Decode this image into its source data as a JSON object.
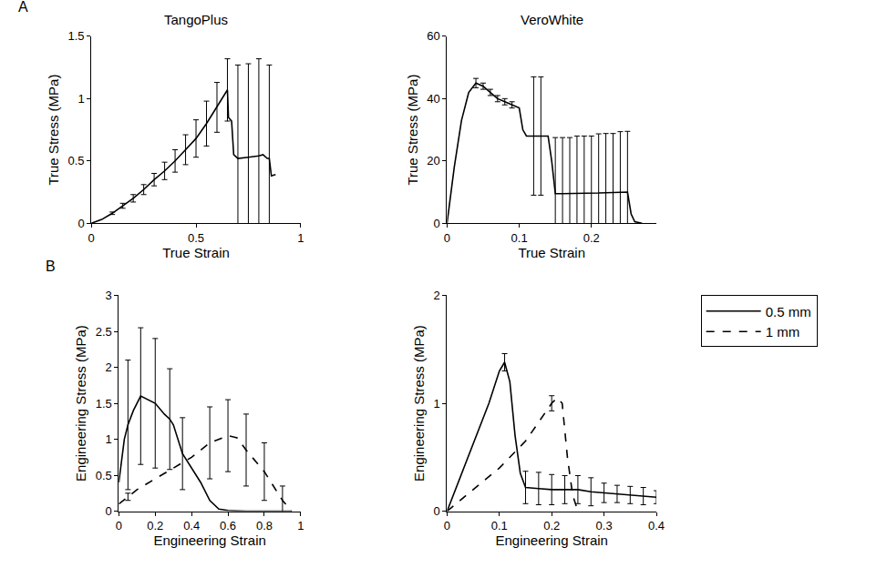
{
  "chart_data": [
    {
      "type": "line",
      "panel": "A",
      "title": "TangoPlus",
      "x_label": "True Strain",
      "y_label": "True Stress (MPa)",
      "xlim": [
        0,
        1
      ],
      "xticks": [
        0,
        0.5,
        1
      ],
      "ylim": [
        0,
        1.5
      ],
      "yticks": [
        0,
        0.5,
        1,
        1.5
      ],
      "series": [
        {
          "color": "#000000",
          "line_style": "solid",
          "x": [
            0,
            0.05,
            0.1,
            0.15,
            0.2,
            0.25,
            0.3,
            0.35,
            0.4,
            0.45,
            0.5,
            0.55,
            0.6,
            0.65,
            0.655,
            0.67,
            0.68,
            0.7,
            0.75,
            0.8,
            0.82,
            0.84,
            0.85,
            0.86,
            0.88
          ],
          "values": [
            0,
            0.03,
            0.08,
            0.14,
            0.2,
            0.27,
            0.35,
            0.42,
            0.5,
            0.59,
            0.68,
            0.8,
            0.93,
            1.07,
            0.85,
            0.82,
            0.55,
            0.52,
            0.53,
            0.54,
            0.55,
            0.52,
            0.52,
            0.38,
            0.39
          ],
          "error": [
            null,
            null,
            0.01,
            0.02,
            0.03,
            0.04,
            0.05,
            0.07,
            0.09,
            0.12,
            0.15,
            0.18,
            0.2,
            0.25,
            null,
            null,
            null,
            0.75,
            0.75,
            0.78,
            null,
            null,
            0.75,
            null,
            null
          ]
        }
      ]
    },
    {
      "type": "line",
      "title": "VeroWhite",
      "x_label": "True Strain",
      "y_label": "True Stress (MPa)",
      "xlim": [
        0,
        0.29
      ],
      "xticks": [
        0,
        0.1,
        0.2
      ],
      "ylim": [
        0,
        60
      ],
      "yticks": [
        0,
        20,
        40,
        60
      ],
      "series": [
        {
          "color": "#000000",
          "line_style": "solid",
          "x": [
            0,
            0.01,
            0.02,
            0.03,
            0.04,
            0.05,
            0.06,
            0.07,
            0.08,
            0.09,
            0.1,
            0.105,
            0.11,
            0.12,
            0.13,
            0.14,
            0.145,
            0.15,
            0.16,
            0.17,
            0.18,
            0.19,
            0.2,
            0.21,
            0.22,
            0.23,
            0.24,
            0.25,
            0.255,
            0.26,
            0.27
          ],
          "values": [
            0,
            18,
            33,
            42,
            45,
            44,
            42,
            40,
            39,
            38,
            37,
            30,
            28,
            28,
            28,
            28,
            20,
            9.5,
            9.5,
            9.5,
            9.5,
            9.5,
            9.5,
            9.7,
            9.8,
            9.8,
            9.9,
            10,
            3,
            0.5,
            0
          ],
          "error": [
            null,
            null,
            null,
            null,
            1.5,
            1,
            1,
            1,
            1,
            1,
            null,
            null,
            null,
            19,
            19,
            null,
            null,
            18,
            18,
            18,
            18.5,
            18.5,
            18.5,
            19,
            19,
            19,
            19.5,
            19.5,
            null,
            null,
            null
          ]
        }
      ]
    },
    {
      "type": "line",
      "panel": "B",
      "x_label": "Engineering Strain",
      "y_label": "Engineering Stress (MPa)",
      "xlim": [
        0,
        1
      ],
      "xticks": [
        0,
        0.2,
        0.4,
        0.6,
        0.8,
        1
      ],
      "ylim": [
        0,
        3
      ],
      "yticks": [
        0,
        0.5,
        1,
        1.5,
        2,
        2.5,
        3
      ],
      "series": [
        {
          "name": "0.5 mm",
          "color": "#000000",
          "line_style": "solid",
          "x": [
            0,
            0.03,
            0.05,
            0.08,
            0.12,
            0.2,
            0.25,
            0.28,
            0.3,
            0.35,
            0.45,
            0.5,
            0.55,
            0.6,
            0.7,
            0.8,
            0.95
          ],
          "values": [
            0.4,
            1.0,
            1.2,
            1.4,
            1.6,
            1.5,
            1.35,
            1.28,
            1.2,
            0.8,
            0.4,
            0.15,
            0.03,
            0.01,
            0,
            0,
            0
          ],
          "error": [
            null,
            null,
            0.9,
            null,
            0.95,
            0.9,
            null,
            0.7,
            null,
            0.5,
            null,
            null,
            null,
            null,
            null,
            null,
            null
          ]
        },
        {
          "name": "1 mm",
          "color": "#000000",
          "line_style": "dashed",
          "x": [
            0,
            0.05,
            0.1,
            0.2,
            0.3,
            0.4,
            0.5,
            0.6,
            0.65,
            0.7,
            0.8,
            0.9,
            0.95
          ],
          "values": [
            0.1,
            0.2,
            0.3,
            0.45,
            0.6,
            0.75,
            0.95,
            1.05,
            1.02,
            0.85,
            0.55,
            0.15,
            0
          ],
          "error": [
            null,
            0.05,
            null,
            null,
            null,
            null,
            0.5,
            0.5,
            null,
            0.5,
            0.4,
            0.2,
            null
          ]
        }
      ]
    },
    {
      "type": "line",
      "legend": "right",
      "x_label": "Engineering Strain",
      "y_label": "Engineering Stress (MPa)",
      "xlim": [
        0,
        0.4
      ],
      "xticks": [
        0,
        0.1,
        0.2,
        0.3,
        0.4
      ],
      "ylim": [
        0,
        2
      ],
      "yticks": [
        0,
        1,
        2
      ],
      "series": [
        {
          "name": "0.5 mm",
          "color": "#000000",
          "line_style": "solid",
          "x": [
            0,
            0.02,
            0.04,
            0.06,
            0.08,
            0.1,
            0.11,
            0.12,
            0.13,
            0.14,
            0.15,
            0.175,
            0.2,
            0.225,
            0.25,
            0.275,
            0.3,
            0.325,
            0.35,
            0.375,
            0.4
          ],
          "values": [
            0,
            0.25,
            0.5,
            0.75,
            1.0,
            1.3,
            1.38,
            1.2,
            0.7,
            0.35,
            0.22,
            0.21,
            0.2,
            0.2,
            0.2,
            0.18,
            0.17,
            0.16,
            0.15,
            0.14,
            0.13
          ],
          "error": [
            null,
            null,
            null,
            null,
            null,
            null,
            0.08,
            null,
            null,
            null,
            0.15,
            0.15,
            0.14,
            0.13,
            0.13,
            0.13,
            0.09,
            0.08,
            0.08,
            0.08,
            0.06
          ]
        },
        {
          "name": "1 mm",
          "color": "#000000",
          "line_style": "dashed",
          "x": [
            0,
            0.05,
            0.1,
            0.15,
            0.2,
            0.21,
            0.22,
            0.23,
            0.24,
            0.25
          ],
          "values": [
            0,
            0.2,
            0.4,
            0.65,
            1.0,
            1.05,
            1.0,
            0.5,
            0.15,
            0
          ],
          "error": [
            null,
            null,
            null,
            null,
            0.07,
            null,
            null,
            null,
            null,
            null
          ]
        }
      ]
    }
  ]
}
